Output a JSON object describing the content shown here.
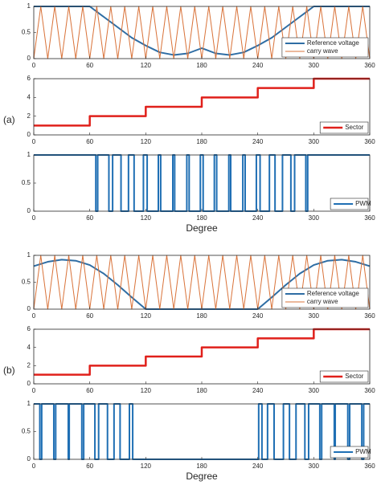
{
  "panel_labels": [
    "(a)",
    "(b)"
  ],
  "chart_data": [
    {
      "type": "line",
      "xlim": [
        0,
        360
      ],
      "xticks": [
        0,
        60,
        120,
        180,
        240,
        300,
        360
      ],
      "ylim": [
        0,
        1
      ],
      "yticks": [
        0,
        0.5,
        1
      ],
      "legend": "lower right",
      "series": [
        {
          "name": "Reference voltage",
          "color": "#2e6da4",
          "width": 2,
          "x": [
            0,
            15,
            30,
            45,
            60,
            75,
            90,
            105,
            120,
            135,
            150,
            165,
            180,
            195,
            210,
            225,
            240,
            255,
            270,
            285,
            300,
            315,
            330,
            345,
            360
          ],
          "values": [
            1,
            1,
            1,
            1,
            1,
            0.8,
            0.6,
            0.4,
            0.25,
            0.12,
            0.07,
            0.1,
            0.2,
            0.1,
            0.07,
            0.12,
            0.25,
            0.4,
            0.6,
            0.8,
            1,
            1,
            1,
            1,
            1
          ]
        },
        {
          "name": "carry wave",
          "color": "#d9733a",
          "width": 1,
          "x": [
            0,
            7.5,
            15,
            22.5,
            30,
            37.5,
            45,
            52.5,
            60,
            67.5,
            75,
            82.5,
            90,
            97.5,
            105,
            112.5,
            120,
            127.5,
            135,
            142.5,
            150,
            157.5,
            165,
            172.5,
            180,
            187.5,
            195,
            202.5,
            210,
            217.5,
            225,
            232.5,
            240,
            247.5,
            255,
            262.5,
            270,
            277.5,
            285,
            292.5,
            300,
            307.5,
            315,
            322.5,
            330,
            337.5,
            345,
            352.5,
            360
          ],
          "values": [
            0,
            1,
            0,
            1,
            0,
            1,
            0,
            1,
            0,
            1,
            0,
            1,
            0,
            1,
            0,
            1,
            0,
            1,
            0,
            1,
            0,
            1,
            0,
            1,
            0,
            1,
            0,
            1,
            0,
            1,
            0,
            1,
            0,
            1,
            0,
            1,
            0,
            1,
            0,
            1,
            0,
            1,
            0,
            1,
            0,
            1,
            0,
            1,
            0
          ]
        }
      ]
    },
    {
      "type": "line",
      "xlim": [
        0,
        360
      ],
      "xticks": [
        0,
        60,
        120,
        180,
        240,
        300,
        360
      ],
      "ylim": [
        0,
        6
      ],
      "yticks": [
        0,
        2,
        4,
        6
      ],
      "legend": "lower right",
      "series": [
        {
          "name": "Sector",
          "color": "#e0201b",
          "width": 2.5,
          "x": [
            0,
            60,
            60,
            120,
            120,
            180,
            180,
            240,
            240,
            300,
            300,
            360
          ],
          "values": [
            1,
            1,
            2,
            2,
            3,
            3,
            4,
            4,
            5,
            5,
            6,
            6
          ]
        }
      ]
    },
    {
      "type": "line",
      "xlim": [
        0,
        360
      ],
      "xticks": [
        0,
        60,
        120,
        180,
        240,
        300,
        360
      ],
      "ylim": [
        0,
        1
      ],
      "yticks": [
        0,
        0.5,
        1
      ],
      "legend": "lower right",
      "xlabel": "Degree",
      "series": [
        {
          "name": "PWM",
          "color": "#1f6fb4",
          "width": 2,
          "x": [
            0,
            66.5,
            66.5,
            68.5,
            68.5,
            80.5,
            80.5,
            84.5,
            84.5,
            93.5,
            93.5,
            101.5,
            101.5,
            107.5,
            107.5,
            117.5,
            117.5,
            121.5,
            121.5,
            133.5,
            133.5,
            136,
            136,
            149,
            149,
            151,
            151,
            164,
            164,
            166.5,
            166.5,
            178.5,
            178.5,
            181.5,
            181.5,
            193.5,
            193.5,
            196,
            196,
            209,
            209,
            211,
            211,
            224,
            224,
            226.5,
            226.5,
            238.5,
            238.5,
            242.5,
            242.5,
            252.5,
            252.5,
            258.5,
            258.5,
            266.5,
            266.5,
            275.5,
            275.5,
            279.5,
            279.5,
            291.5,
            291.5,
            293.5,
            293.5,
            360
          ],
          "values": [
            1,
            1,
            0,
            0,
            1,
            1,
            0,
            0,
            1,
            1,
            0,
            0,
            1,
            1,
            0,
            0,
            1,
            1,
            0,
            0,
            1,
            1,
            0,
            0,
            1,
            1,
            0,
            0,
            1,
            1,
            0,
            0,
            1,
            1,
            0,
            0,
            1,
            1,
            0,
            0,
            1,
            1,
            0,
            0,
            1,
            1,
            0,
            0,
            1,
            1,
            0,
            0,
            1,
            1,
            0,
            0,
            1,
            1,
            0,
            0,
            1,
            1,
            0,
            0,
            1,
            1
          ]
        }
      ]
    },
    {
      "type": "line",
      "xlim": [
        0,
        360
      ],
      "xticks": [
        0,
        60,
        120,
        180,
        240,
        300,
        360
      ],
      "ylim": [
        0,
        1
      ],
      "yticks": [
        0,
        0.5,
        1
      ],
      "legend": "lower right",
      "series": [
        {
          "name": "Reference voltage",
          "color": "#2e6da4",
          "width": 2,
          "x": [
            0,
            15,
            30,
            45,
            60,
            75,
            90,
            105,
            120,
            135,
            150,
            165,
            180,
            195,
            210,
            225,
            240,
            255,
            270,
            285,
            300,
            315,
            330,
            345,
            360
          ],
          "values": [
            0.8,
            0.88,
            0.92,
            0.9,
            0.82,
            0.66,
            0.45,
            0.22,
            0,
            0,
            0,
            0,
            0,
            0,
            0,
            0,
            0,
            0.22,
            0.45,
            0.66,
            0.82,
            0.9,
            0.92,
            0.88,
            0.8
          ]
        },
        {
          "name": "carry wave",
          "color": "#d9733a",
          "width": 1,
          "x": [
            0,
            7.5,
            15,
            22.5,
            30,
            37.5,
            45,
            52.5,
            60,
            67.5,
            75,
            82.5,
            90,
            97.5,
            105,
            112.5,
            120,
            127.5,
            135,
            142.5,
            150,
            157.5,
            165,
            172.5,
            180,
            187.5,
            195,
            202.5,
            210,
            217.5,
            225,
            232.5,
            240,
            247.5,
            255,
            262.5,
            270,
            277.5,
            285,
            292.5,
            300,
            307.5,
            315,
            322.5,
            330,
            337.5,
            345,
            352.5,
            360
          ],
          "values": [
            0,
            1,
            0,
            1,
            0,
            1,
            0,
            1,
            0,
            1,
            0,
            1,
            0,
            1,
            0,
            1,
            0,
            1,
            0,
            1,
            0,
            1,
            0,
            1,
            0,
            1,
            0,
            1,
            0,
            1,
            0,
            1,
            0,
            1,
            0,
            1,
            0,
            1,
            0,
            1,
            0,
            1,
            0,
            1,
            0,
            1,
            0,
            1,
            0
          ]
        }
      ]
    },
    {
      "type": "line",
      "xlim": [
        0,
        360
      ],
      "xticks": [
        0,
        60,
        120,
        180,
        240,
        300,
        360
      ],
      "ylim": [
        0,
        6
      ],
      "yticks": [
        0,
        2,
        4,
        6
      ],
      "legend": "lower right",
      "series": [
        {
          "name": "Sector",
          "color": "#e0201b",
          "width": 2.5,
          "x": [
            0,
            60,
            60,
            120,
            120,
            180,
            180,
            240,
            240,
            300,
            300,
            360
          ],
          "values": [
            1,
            1,
            2,
            2,
            3,
            3,
            4,
            4,
            5,
            5,
            6,
            6
          ]
        }
      ]
    },
    {
      "type": "line",
      "xlim": [
        0,
        360
      ],
      "xticks": [
        0,
        60,
        120,
        180,
        240,
        300,
        360
      ],
      "ylim": [
        0,
        1
      ],
      "yticks": [
        0,
        0.5,
        1
      ],
      "legend": "lower right",
      "xlabel": "Degree",
      "series": [
        {
          "name": "PWM",
          "color": "#1f6fb4",
          "width": 2,
          "x": [
            0,
            6.5,
            6.5,
            8.5,
            8.5,
            21.5,
            21.5,
            23.5,
            23.5,
            37,
            37,
            38,
            38,
            51.5,
            51.5,
            53.5,
            53.5,
            65.5,
            65.5,
            69.5,
            69.5,
            79,
            79,
            86,
            86,
            92.5,
            92.5,
            102.5,
            102.5,
            106,
            106,
            241,
            241,
            244.5,
            244.5,
            250.5,
            250.5,
            257.5,
            257.5,
            267.5,
            267.5,
            274,
            274,
            281,
            281,
            290.5,
            290.5,
            294.5,
            294.5,
            306.5,
            306.5,
            308.5,
            308.5,
            322,
            322,
            323,
            323,
            336.5,
            336.5,
            338.5,
            338.5,
            351.5,
            351.5,
            353.5,
            353.5,
            360
          ],
          "values": [
            1,
            1,
            0,
            0,
            1,
            1,
            0,
            0,
            1,
            1,
            0,
            0,
            1,
            1,
            0,
            0,
            1,
            1,
            0,
            0,
            1,
            1,
            0,
            0,
            1,
            1,
            0,
            0,
            1,
            1,
            0,
            0,
            1,
            1,
            0,
            0,
            1,
            1,
            0,
            0,
            1,
            1,
            0,
            0,
            1,
            1,
            0,
            0,
            1,
            1,
            0,
            0,
            1,
            1,
            0,
            0,
            1,
            1,
            0,
            0,
            1,
            1,
            0,
            0,
            1,
            1
          ]
        }
      ]
    }
  ]
}
